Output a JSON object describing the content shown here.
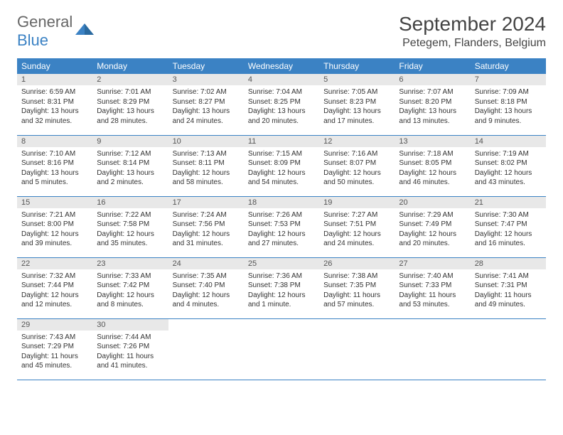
{
  "brand": {
    "main": "General",
    "accent": "Blue"
  },
  "title": "September 2024",
  "location": "Petegem, Flanders, Belgium",
  "colors": {
    "header_bg": "#3b82c4",
    "header_fg": "#ffffff",
    "daynum_bg": "#e8e8e8",
    "border": "#3b82c4",
    "text": "#333333"
  },
  "weekdays": [
    "Sunday",
    "Monday",
    "Tuesday",
    "Wednesday",
    "Thursday",
    "Friday",
    "Saturday"
  ],
  "weeks": [
    [
      {
        "n": "1",
        "sr": "6:59 AM",
        "ss": "8:31 PM",
        "dl": "13 hours and 32 minutes."
      },
      {
        "n": "2",
        "sr": "7:01 AM",
        "ss": "8:29 PM",
        "dl": "13 hours and 28 minutes."
      },
      {
        "n": "3",
        "sr": "7:02 AM",
        "ss": "8:27 PM",
        "dl": "13 hours and 24 minutes."
      },
      {
        "n": "4",
        "sr": "7:04 AM",
        "ss": "8:25 PM",
        "dl": "13 hours and 20 minutes."
      },
      {
        "n": "5",
        "sr": "7:05 AM",
        "ss": "8:23 PM",
        "dl": "13 hours and 17 minutes."
      },
      {
        "n": "6",
        "sr": "7:07 AM",
        "ss": "8:20 PM",
        "dl": "13 hours and 13 minutes."
      },
      {
        "n": "7",
        "sr": "7:09 AM",
        "ss": "8:18 PM",
        "dl": "13 hours and 9 minutes."
      }
    ],
    [
      {
        "n": "8",
        "sr": "7:10 AM",
        "ss": "8:16 PM",
        "dl": "13 hours and 5 minutes."
      },
      {
        "n": "9",
        "sr": "7:12 AM",
        "ss": "8:14 PM",
        "dl": "13 hours and 2 minutes."
      },
      {
        "n": "10",
        "sr": "7:13 AM",
        "ss": "8:11 PM",
        "dl": "12 hours and 58 minutes."
      },
      {
        "n": "11",
        "sr": "7:15 AM",
        "ss": "8:09 PM",
        "dl": "12 hours and 54 minutes."
      },
      {
        "n": "12",
        "sr": "7:16 AM",
        "ss": "8:07 PM",
        "dl": "12 hours and 50 minutes."
      },
      {
        "n": "13",
        "sr": "7:18 AM",
        "ss": "8:05 PM",
        "dl": "12 hours and 46 minutes."
      },
      {
        "n": "14",
        "sr": "7:19 AM",
        "ss": "8:02 PM",
        "dl": "12 hours and 43 minutes."
      }
    ],
    [
      {
        "n": "15",
        "sr": "7:21 AM",
        "ss": "8:00 PM",
        "dl": "12 hours and 39 minutes."
      },
      {
        "n": "16",
        "sr": "7:22 AM",
        "ss": "7:58 PM",
        "dl": "12 hours and 35 minutes."
      },
      {
        "n": "17",
        "sr": "7:24 AM",
        "ss": "7:56 PM",
        "dl": "12 hours and 31 minutes."
      },
      {
        "n": "18",
        "sr": "7:26 AM",
        "ss": "7:53 PM",
        "dl": "12 hours and 27 minutes."
      },
      {
        "n": "19",
        "sr": "7:27 AM",
        "ss": "7:51 PM",
        "dl": "12 hours and 24 minutes."
      },
      {
        "n": "20",
        "sr": "7:29 AM",
        "ss": "7:49 PM",
        "dl": "12 hours and 20 minutes."
      },
      {
        "n": "21",
        "sr": "7:30 AM",
        "ss": "7:47 PM",
        "dl": "12 hours and 16 minutes."
      }
    ],
    [
      {
        "n": "22",
        "sr": "7:32 AM",
        "ss": "7:44 PM",
        "dl": "12 hours and 12 minutes."
      },
      {
        "n": "23",
        "sr": "7:33 AM",
        "ss": "7:42 PM",
        "dl": "12 hours and 8 minutes."
      },
      {
        "n": "24",
        "sr": "7:35 AM",
        "ss": "7:40 PM",
        "dl": "12 hours and 4 minutes."
      },
      {
        "n": "25",
        "sr": "7:36 AM",
        "ss": "7:38 PM",
        "dl": "12 hours and 1 minute."
      },
      {
        "n": "26",
        "sr": "7:38 AM",
        "ss": "7:35 PM",
        "dl": "11 hours and 57 minutes."
      },
      {
        "n": "27",
        "sr": "7:40 AM",
        "ss": "7:33 PM",
        "dl": "11 hours and 53 minutes."
      },
      {
        "n": "28",
        "sr": "7:41 AM",
        "ss": "7:31 PM",
        "dl": "11 hours and 49 minutes."
      }
    ],
    [
      {
        "n": "29",
        "sr": "7:43 AM",
        "ss": "7:29 PM",
        "dl": "11 hours and 45 minutes."
      },
      {
        "n": "30",
        "sr": "7:44 AM",
        "ss": "7:26 PM",
        "dl": "11 hours and 41 minutes."
      },
      null,
      null,
      null,
      null,
      null
    ]
  ],
  "labels": {
    "sunrise": "Sunrise:",
    "sunset": "Sunset:",
    "daylight": "Daylight:"
  }
}
